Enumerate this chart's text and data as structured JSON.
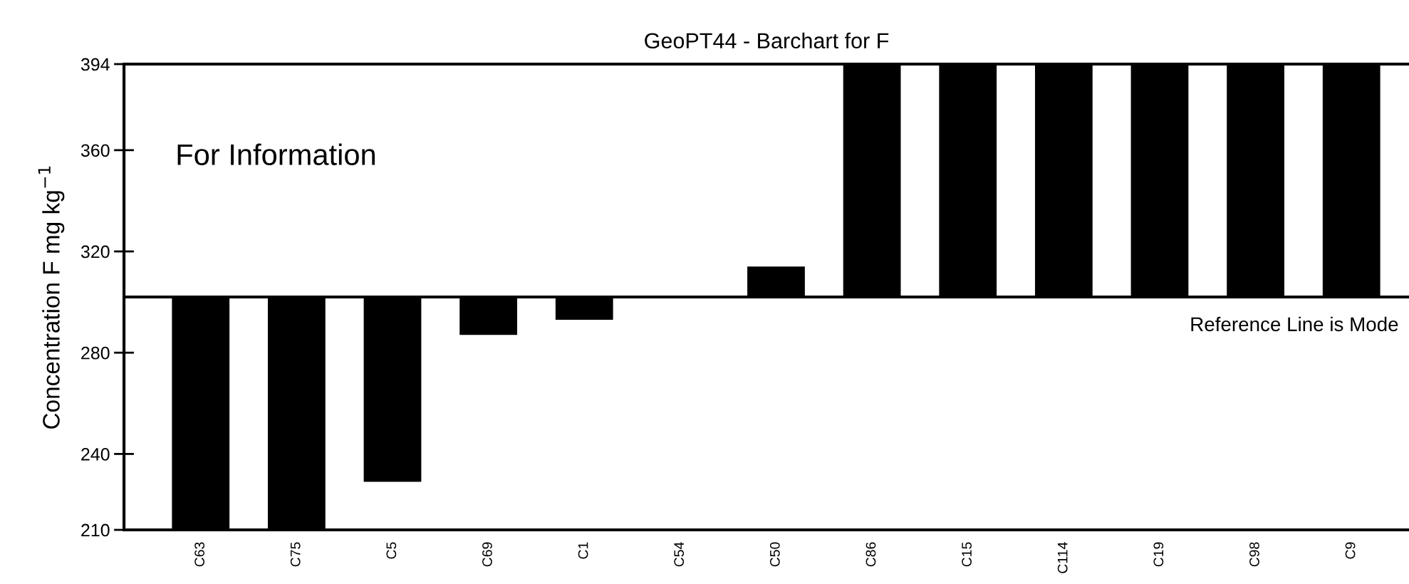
{
  "chart_data": {
    "type": "bar",
    "title": "GeoPT44 - Barchart for F",
    "ylabel": "Concentration F mg kg$^{−1}$",
    "categories": [
      "C63",
      "C75",
      "C5",
      "C69",
      "C1",
      "C54",
      "C50",
      "C86",
      "C15",
      "C114",
      "C19",
      "C98",
      "C9"
    ],
    "base": [
      302,
      302,
      302,
      302,
      302,
      null,
      302,
      302,
      302,
      302,
      302,
      302,
      302
    ],
    "values": [
      -92,
      -92,
      -73,
      -15,
      -9,
      null,
      12,
      92,
      92,
      92,
      92,
      92,
      92
    ],
    "color": "#000000",
    "ylim": [
      210,
      394
    ],
    "yticks": [
      210,
      240,
      280,
      320,
      360,
      394
    ],
    "ref_lines": [
      {
        "axis": "y",
        "value": 302,
        "label": "Reference Line is Mode",
        "color": "#000000"
      }
    ],
    "annotations": [
      "For Information"
    ],
    "grid": false,
    "legend": false
  }
}
